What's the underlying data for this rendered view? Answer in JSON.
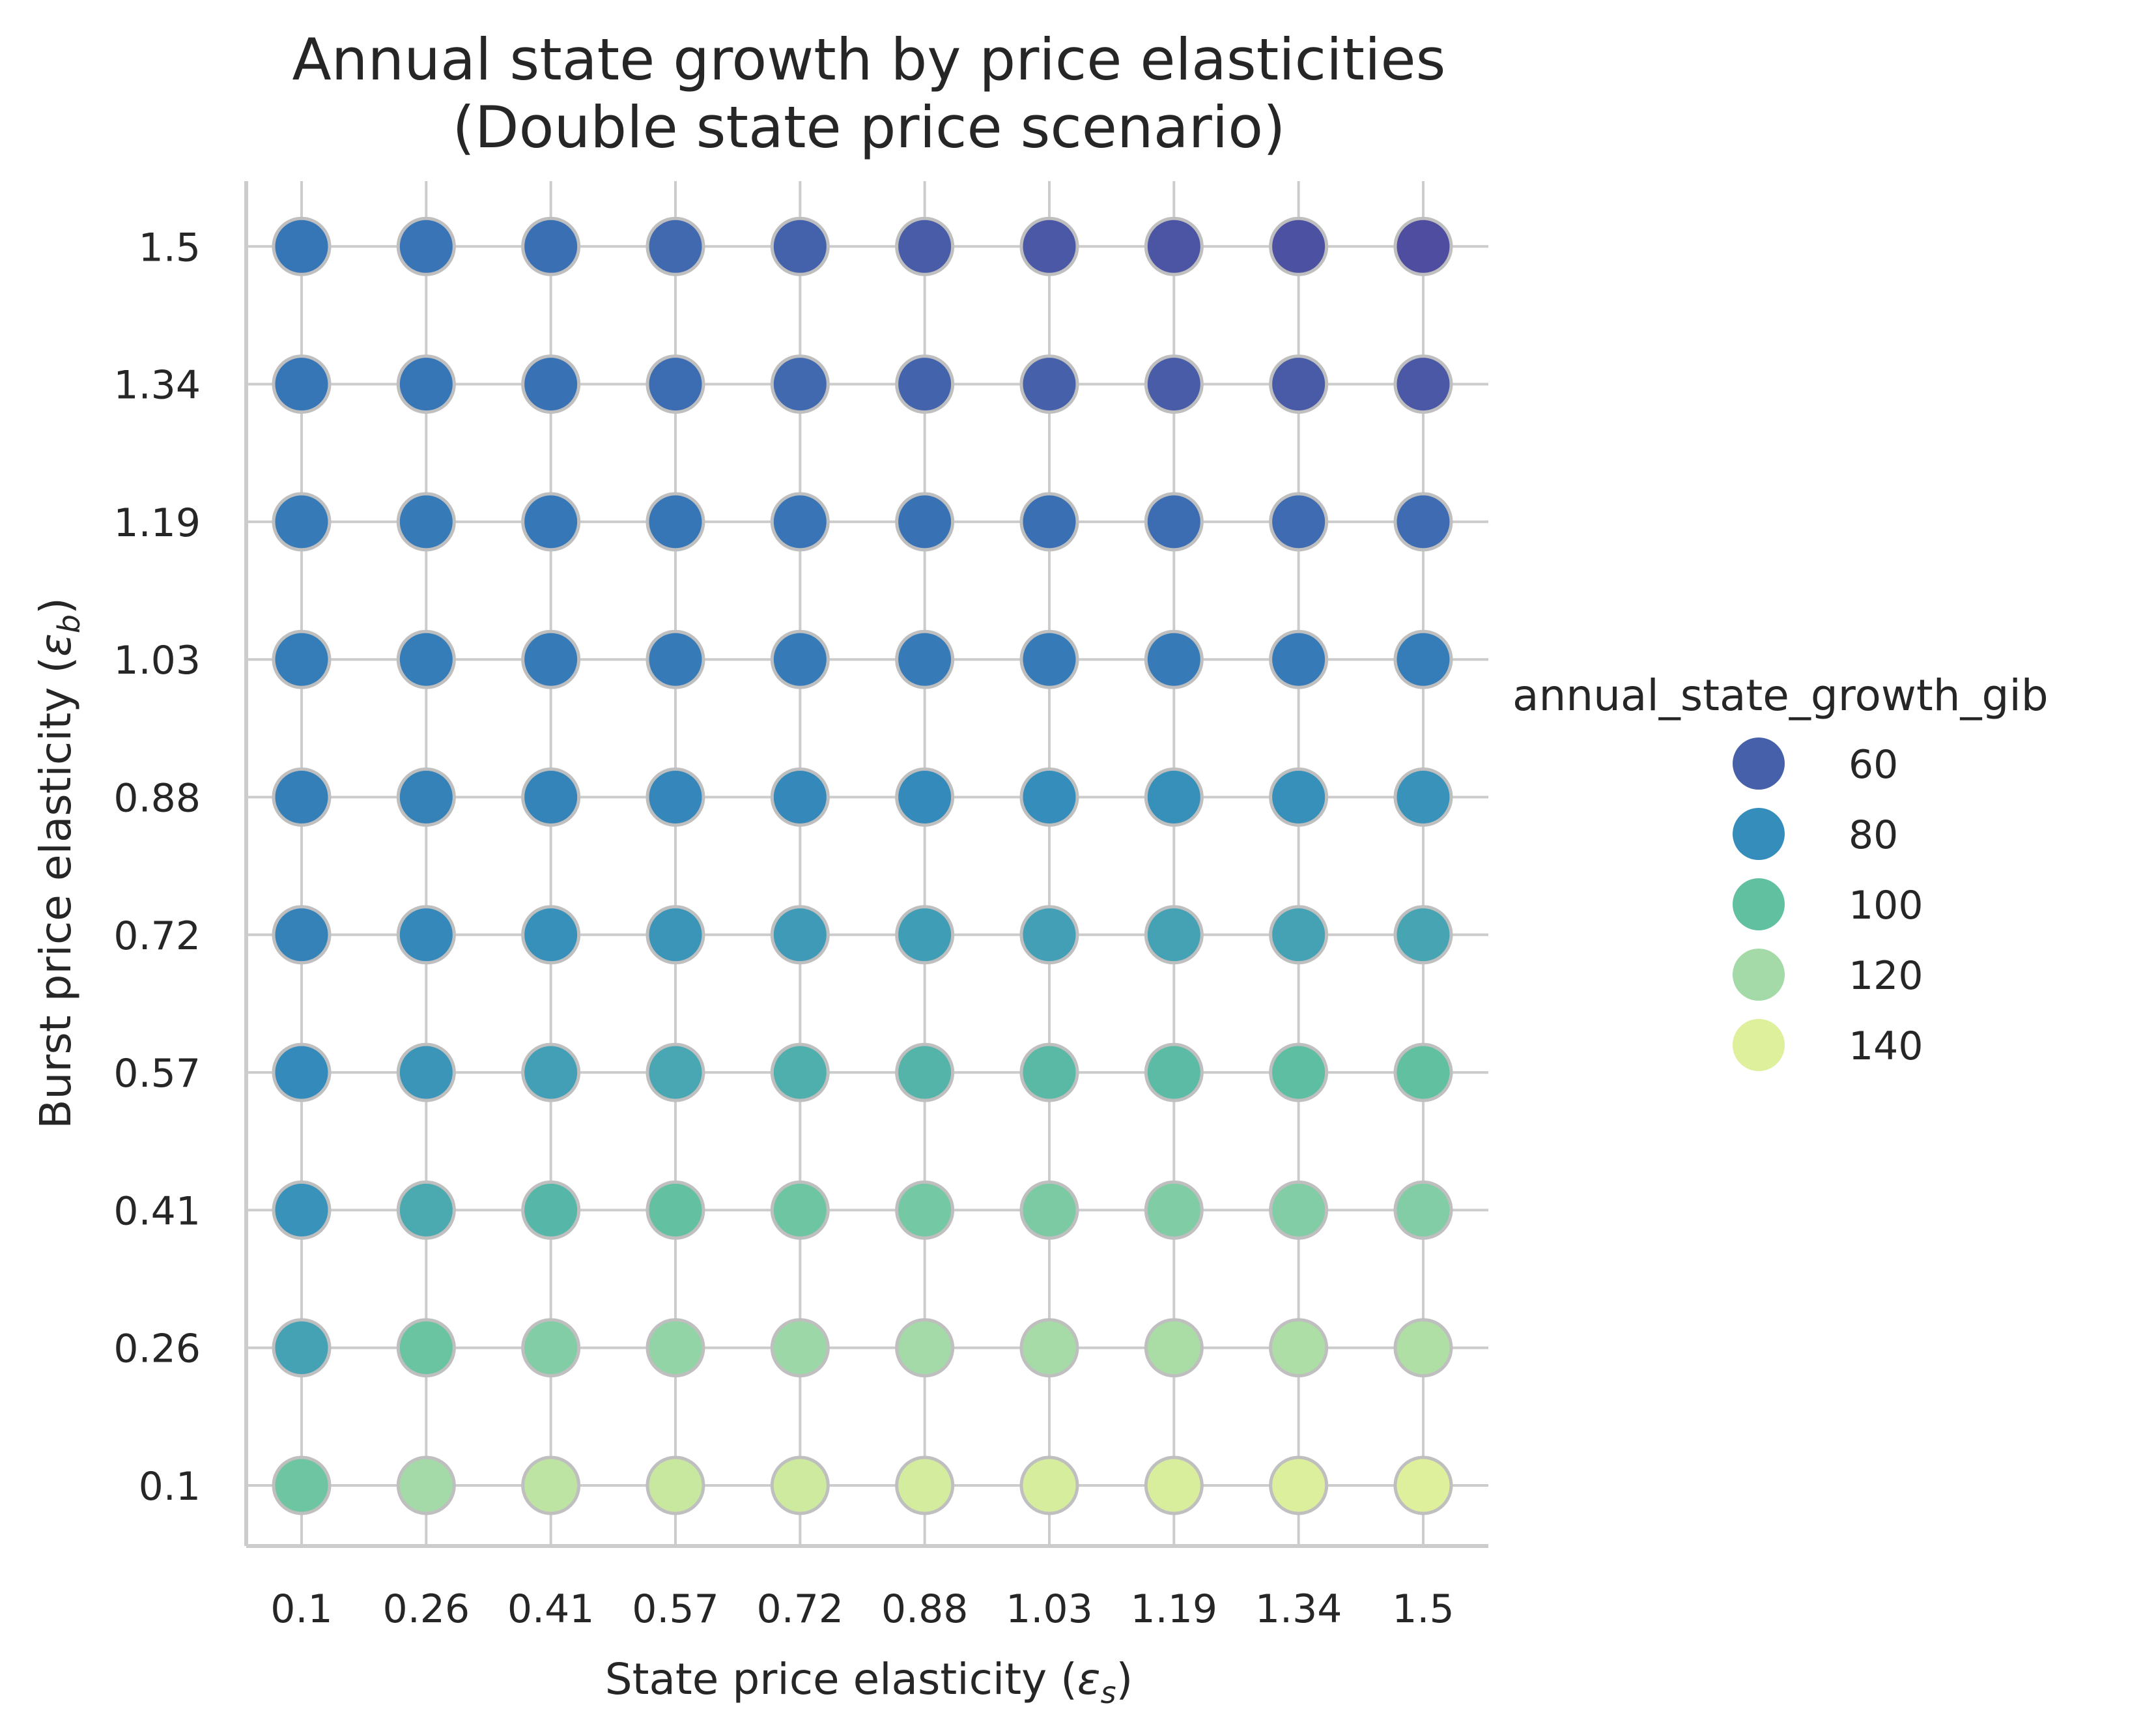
{
  "chart_data": {
    "type": "scatter",
    "title_lines": [
      "Annual state growth by price elasticities",
      "(Double state price scenario)"
    ],
    "xlabel": {
      "text": "State price elasticity (",
      "symbol": "ε",
      "subscript": "s",
      "close": ")"
    },
    "ylabel": {
      "text": "Burst price elasticity (",
      "symbol": "ε",
      "subscript": "b",
      "close": ")"
    },
    "x_categories": [
      "0.1",
      "0.26",
      "0.41",
      "0.57",
      "0.72",
      "0.88",
      "1.03",
      "1.19",
      "1.34",
      "1.5"
    ],
    "y_categories": [
      "0.1",
      "0.26",
      "0.41",
      "0.57",
      "0.72",
      "0.88",
      "1.03",
      "1.19",
      "1.34",
      "1.5"
    ],
    "color_variable": "annual_state_growth_gib",
    "palette": "mako-to-yellowgreen (dark blue = low, light yellow-green = high)",
    "legend": {
      "title": "annual_state_growth_gib",
      "placement": "right",
      "entries": [
        {
          "label": "60",
          "value": 60
        },
        {
          "label": "80",
          "value": 80
        },
        {
          "label": "100",
          "value": 100
        },
        {
          "label": "120",
          "value": 120
        },
        {
          "label": "140",
          "value": 140
        }
      ]
    },
    "grid": true,
    "values_by_y": {
      "0.1": [
        104,
        120,
        128,
        132,
        134,
        136,
        137,
        138,
        139,
        140
      ],
      "0.26": [
        88,
        103,
        110,
        115,
        118,
        120,
        121,
        122,
        123,
        124
      ],
      "0.41": [
        82,
        91,
        96,
        101,
        104,
        106,
        108,
        109,
        110,
        110
      ],
      "0.57": [
        79,
        83,
        87,
        90,
        93,
        95,
        97,
        98,
        99,
        100
      ],
      "0.72": [
        75,
        78,
        81,
        83,
        85,
        86,
        87,
        88,
        88,
        89
      ],
      "0.88": [
        74,
        75,
        76,
        77,
        78,
        79,
        80,
        81,
        81,
        82
      ],
      "1.03": [
        73,
        73,
        72,
        72,
        72,
        72,
        72,
        72,
        72,
        73
      ],
      "1.19": [
        72,
        72,
        71,
        70,
        69,
        68,
        67,
        66,
        65,
        65
      ],
      "1.34": [
        70,
        70,
        68,
        66,
        64,
        62,
        60,
        58,
        57,
        56
      ],
      "1.5": [
        70,
        69,
        67,
        64,
        61,
        58,
        56,
        54,
        52,
        50
      ]
    }
  }
}
